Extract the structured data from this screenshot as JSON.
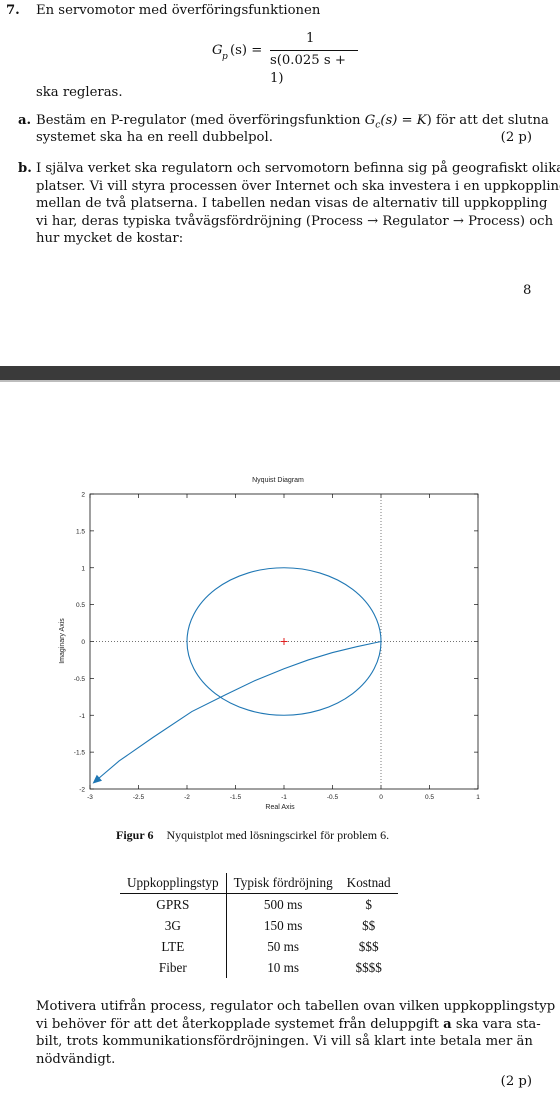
{
  "problem": {
    "number": "7.",
    "intro": "En servomotor med överföringsfunktionen",
    "formula": {
      "lhs": "G",
      "lhs_sub": "p",
      "lhs_arg": "(s) =",
      "numerator": "1",
      "denominator": "s(0.025 s + 1)"
    },
    "after_formula": "ska regleras.",
    "part_a": {
      "label": "a.",
      "line1_before": "Bestäm en P-regulator (med överföringsfunktion ",
      "line1_math": "G",
      "line1_math_sub": "c",
      "line1_math_rest": "(s) = K",
      "line1_after": ") för att det slutna",
      "line2": "systemet ska ha en reell dubbelpol.",
      "points": "(2 p)"
    },
    "part_b": {
      "label": "b.",
      "lines": [
        "I själva verket ska regulatorn och servomotorn befinna sig på geografiskt olika",
        "platser. Vi vill styra processen över Internet och ska investera i en uppkoppling",
        "mellan de två platserna. I tabellen nedan visas de alternativ till uppkoppling",
        "vi har, deras typiska tvåvägsfördröjning (Process → Regulator → Process) och",
        "hur mycket de kostar:"
      ]
    },
    "page_number": "8"
  },
  "figure": {
    "caption_label": "Figur 6",
    "caption_text": "Nyquistplot med lösningscirkel för problem 6."
  },
  "chart_data": {
    "type": "line",
    "title": "Nyquist Diagram",
    "xlabel": "Real Axis",
    "ylabel": "Imaginary Axis",
    "xlim": [
      -3,
      1
    ],
    "ylim": [
      -2,
      2
    ],
    "xticks": [
      "-3",
      "-2.5",
      "-2",
      "-1.5",
      "-1",
      "-0.5",
      "0",
      "0.5",
      "1"
    ],
    "yticks": [
      "2",
      "1.5",
      "1",
      "0.5",
      "0",
      "-0.5",
      "-1",
      "-1.5",
      "-2"
    ],
    "grid": false,
    "colors": {
      "curve": "#1f77b4",
      "marker": "#e02020"
    },
    "circle": {
      "center": [
        -1,
        0
      ],
      "radius": 1
    },
    "critical_point": [
      -1,
      0
    ],
    "nyquist_curve": {
      "x": [
        0,
        -0.25,
        -0.5,
        -0.75,
        -1.0,
        -1.3,
        -1.6,
        -1.95,
        -2.35,
        -2.7,
        -2.95
      ],
      "y": [
        0,
        -0.07,
        -0.15,
        -0.25,
        -0.37,
        -0.53,
        -0.72,
        -0.95,
        -1.3,
        -1.62,
        -1.9
      ]
    }
  },
  "table": {
    "headers": [
      "Uppkopplingstyp",
      "Typisk fördröjning",
      "Kostnad"
    ],
    "rows": [
      [
        "GPRS",
        "500 ms",
        "$"
      ],
      [
        "3G",
        "150 ms",
        "$$"
      ],
      [
        "LTE",
        "50 ms",
        "$$$"
      ],
      [
        "Fiber",
        "10 ms",
        "$$$$"
      ]
    ]
  },
  "closing": {
    "line1": "Motivera utifrån process, regulator och tabellen ovan vilken uppkopplingstyp",
    "line2_before": "vi behöver för att det återkopplade systemet från deluppgift ",
    "line2_bold": "a",
    "line2_after": " ska vara sta-",
    "line3": "bilt, trots kommunikationsfördröjningen. Vi vill så klart inte betala mer än",
    "line4": "nödvändigt.",
    "points": "(2 p)"
  }
}
